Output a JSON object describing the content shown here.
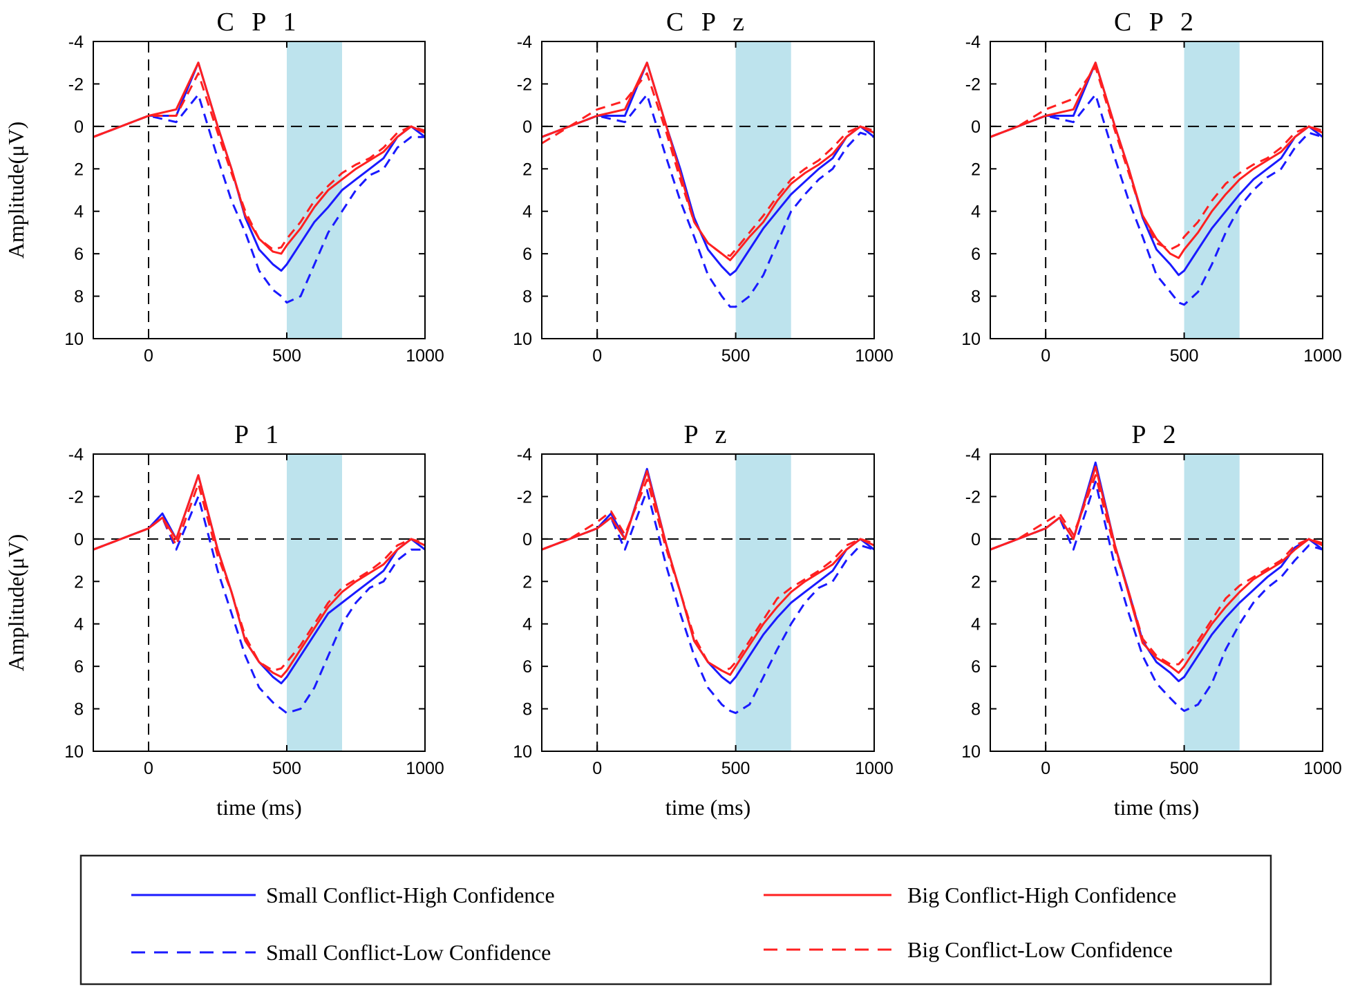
{
  "chart_data": {
    "type": "line",
    "xlabel": "time (ms)",
    "ylabel": "Amplitude(μV)",
    "xlim": [
      -200,
      1000
    ],
    "ylim": [
      -4,
      10
    ],
    "y_inverted": true,
    "xticks": [
      0,
      500,
      1000
    ],
    "yticks": [
      -4,
      -2,
      0,
      2,
      4,
      6,
      8,
      10
    ],
    "highlight_window": [
      500,
      700
    ],
    "highlight_color": "#bde3ed",
    "legend": [
      {
        "key": "sc_hc",
        "label": "Small Conflict-High Confidence",
        "color": "#1a1aff",
        "dash": "solid"
      },
      {
        "key": "sc_lc",
        "label": "Small Conflict-Low Confidence",
        "color": "#1a1aff",
        "dash": "dashed"
      },
      {
        "key": "bc_hc",
        "label": "Big Conflict-High Confidence",
        "color": "#ff2020",
        "dash": "solid"
      },
      {
        "key": "bc_lc",
        "label": "Big Conflict-Low Confidence",
        "color": "#ff2020",
        "dash": "dashed"
      }
    ],
    "panels": [
      {
        "title": "CP1",
        "x": [
          -200,
          -100,
          0,
          100,
          180,
          250,
          300,
          350,
          400,
          450,
          480,
          500,
          550,
          600,
          650,
          700,
          750,
          800,
          850,
          900,
          950,
          1000
        ],
        "series": {
          "sc_hc": [
            0.5,
            0,
            -0.5,
            -0.5,
            -3,
            0,
            2,
            4.3,
            5.8,
            6.5,
            6.8,
            6.5,
            5.5,
            4.5,
            3.8,
            3,
            2.5,
            2,
            1.5,
            0.5,
            0,
            0.5
          ],
          "sc_lc": [
            0.5,
            0,
            -0.5,
            -0.2,
            -1.5,
            1.5,
            3.5,
            5,
            6.8,
            7.7,
            8,
            8.3,
            8,
            6.5,
            5,
            4,
            3,
            2.3,
            2,
            1,
            0.5,
            0.5
          ],
          "bc_hc": [
            0.5,
            0,
            -0.5,
            -0.8,
            -3,
            0,
            2,
            4.2,
            5.3,
            5.9,
            6,
            5.6,
            4.8,
            3.8,
            3,
            2.5,
            2,
            1.6,
            1.2,
            0.5,
            0,
            0.3
          ],
          "bc_lc": [
            0.5,
            0,
            -0.5,
            -0.5,
            -2.5,
            0.3,
            2.2,
            4,
            5.3,
            5.8,
            5.7,
            5.3,
            4.5,
            3.5,
            2.8,
            2.2,
            1.8,
            1.5,
            1,
            0.3,
            0,
            0.2
          ]
        }
      },
      {
        "title": "CPz",
        "x": [
          -200,
          -100,
          0,
          100,
          180,
          250,
          300,
          350,
          400,
          450,
          480,
          500,
          550,
          600,
          650,
          700,
          750,
          800,
          850,
          900,
          950,
          1000
        ],
        "series": {
          "sc_hc": [
            0.5,
            0,
            -0.5,
            -0.5,
            -3,
            0,
            2,
            4.3,
            5.8,
            6.6,
            7,
            6.8,
            5.8,
            4.8,
            4,
            3.2,
            2.6,
            2,
            1.5,
            0.5,
            0,
            0.5
          ],
          "sc_lc": [
            0.5,
            0,
            -0.5,
            -0.2,
            -1.5,
            1.5,
            3.5,
            5.2,
            7,
            8,
            8.5,
            8.5,
            8,
            7,
            5.5,
            4,
            3.2,
            2.5,
            2,
            1,
            0.3,
            0.5
          ],
          "bc_hc": [
            0.5,
            0,
            -0.5,
            -0.8,
            -3,
            0,
            2.2,
            4.5,
            5.5,
            6,
            6.3,
            6,
            5.2,
            4.5,
            3.5,
            2.7,
            2.2,
            1.8,
            1.3,
            0.5,
            0,
            0.3
          ],
          "bc_lc": [
            0.8,
            0,
            -0.8,
            -1.2,
            -2.5,
            0.3,
            2.5,
            4.5,
            5.5,
            6,
            6.1,
            5.8,
            5,
            4.2,
            3.3,
            2.5,
            2,
            1.6,
            1,
            0.3,
            0,
            0.2
          ]
        }
      },
      {
        "title": "CP2",
        "x": [
          -200,
          -100,
          0,
          100,
          180,
          250,
          300,
          350,
          400,
          450,
          480,
          500,
          550,
          600,
          650,
          700,
          750,
          800,
          850,
          900,
          950,
          1000
        ],
        "series": {
          "sc_hc": [
            0.5,
            0,
            -0.5,
            -0.5,
            -3,
            0,
            2,
            4.3,
            5.8,
            6.5,
            7,
            6.8,
            5.8,
            4.8,
            4,
            3.2,
            2.5,
            2,
            1.5,
            0.5,
            0,
            0.5
          ],
          "sc_lc": [
            0.5,
            0,
            -0.5,
            -0.2,
            -1.5,
            1.5,
            3.5,
            5.2,
            7,
            7.8,
            8.3,
            8.4,
            7.8,
            6.5,
            5,
            3.8,
            3,
            2.4,
            2,
            1,
            0.3,
            0.5
          ],
          "bc_hc": [
            0.5,
            0,
            -0.5,
            -0.8,
            -3,
            0,
            2,
            4.2,
            5.3,
            6,
            6.2,
            5.8,
            5,
            4,
            3.2,
            2.5,
            2,
            1.6,
            1.2,
            0.5,
            0,
            0.3
          ],
          "bc_lc": [
            0.5,
            0,
            -0.8,
            -1.3,
            -2.8,
            0.2,
            2.2,
            4.2,
            5.5,
            5.8,
            5.6,
            5.2,
            4.5,
            3.5,
            2.7,
            2.2,
            1.8,
            1.5,
            1,
            0.3,
            0,
            0.2
          ]
        }
      },
      {
        "title": "P1",
        "x": [
          -200,
          -100,
          0,
          50,
          100,
          180,
          250,
          300,
          350,
          400,
          450,
          480,
          500,
          550,
          600,
          650,
          700,
          750,
          800,
          850,
          900,
          950,
          1000
        ],
        "series": {
          "sc_hc": [
            0.5,
            0,
            -0.5,
            -1.2,
            0,
            -3,
            0.5,
            2.5,
            4.8,
            5.8,
            6.5,
            6.8,
            6.5,
            5.5,
            4.5,
            3.5,
            3,
            2.5,
            2,
            1.5,
            0.5,
            0,
            0.5
          ],
          "sc_lc": [
            0.5,
            0,
            -0.5,
            -1,
            0.5,
            -2,
            1.5,
            3.5,
            5.5,
            7,
            7.7,
            8,
            8.2,
            8,
            7,
            5.5,
            4,
            3,
            2.3,
            2,
            1,
            0.5,
            0.5
          ],
          "bc_hc": [
            0.5,
            0,
            -0.5,
            -1,
            0,
            -3,
            0.5,
            2.5,
            4.8,
            5.8,
            6.3,
            6.5,
            6.2,
            5.2,
            4.2,
            3.2,
            2.5,
            2,
            1.6,
            1.2,
            0.5,
            0,
            0.3
          ],
          "bc_lc": [
            0.5,
            0,
            -0.5,
            -1,
            0.3,
            -2.6,
            0.8,
            2.5,
            4.6,
            5.8,
            6.2,
            6.1,
            5.8,
            5,
            4,
            3,
            2.3,
            1.9,
            1.5,
            1,
            0.3,
            0,
            0.2
          ]
        }
      },
      {
        "title": "Pz",
        "x": [
          -200,
          -100,
          0,
          50,
          100,
          180,
          250,
          300,
          350,
          400,
          450,
          480,
          500,
          550,
          600,
          650,
          700,
          750,
          800,
          850,
          900,
          950,
          1000
        ],
        "series": {
          "sc_hc": [
            0.5,
            0,
            -0.5,
            -1.2,
            0,
            -3.3,
            0.3,
            2.5,
            4.8,
            5.8,
            6.5,
            6.8,
            6.5,
            5.5,
            4.5,
            3.7,
            3,
            2.5,
            2,
            1.5,
            0.5,
            0,
            0.5
          ],
          "sc_lc": [
            0.5,
            0,
            -0.5,
            -1,
            0.5,
            -2.3,
            1.3,
            3.5,
            5.5,
            7,
            7.8,
            8.1,
            8.2,
            7.8,
            6.5,
            5.2,
            4,
            3,
            2.3,
            2,
            1,
            0.3,
            0.5
          ],
          "bc_hc": [
            0.5,
            0,
            -0.5,
            -1,
            0,
            -3.2,
            0.3,
            2.5,
            4.8,
            5.8,
            6.2,
            6.4,
            6,
            5,
            4,
            3.2,
            2.5,
            2,
            1.6,
            1.2,
            0.5,
            0,
            0.3
          ],
          "bc_lc": [
            0.5,
            0,
            -0.8,
            -1.3,
            -0.2,
            -2.8,
            0.5,
            2.5,
            4.6,
            5.8,
            6.2,
            6.1,
            5.8,
            4.8,
            3.8,
            2.8,
            2.3,
            1.9,
            1.5,
            1,
            0.3,
            0,
            0.2
          ]
        }
      },
      {
        "title": "P2",
        "x": [
          -200,
          -100,
          0,
          50,
          100,
          180,
          250,
          300,
          350,
          400,
          450,
          480,
          500,
          550,
          600,
          650,
          700,
          750,
          800,
          850,
          900,
          950,
          1000
        ],
        "series": {
          "sc_hc": [
            0.5,
            0,
            -0.5,
            -1,
            0,
            -3.6,
            0.3,
            2.5,
            4.8,
            5.8,
            6.3,
            6.7,
            6.5,
            5.5,
            4.5,
            3.7,
            3,
            2.4,
            1.8,
            1.3,
            0.4,
            0,
            0.5
          ],
          "sc_lc": [
            0.5,
            0,
            -0.5,
            -1,
            0.5,
            -2.7,
            1.3,
            3.5,
            5.5,
            6.8,
            7.5,
            7.9,
            8.1,
            7.8,
            6.8,
            5.2,
            4,
            3,
            2.3,
            1.8,
            1,
            0.3,
            0.5
          ],
          "bc_hc": [
            0.5,
            0,
            -0.5,
            -1,
            0,
            -3.4,
            0.3,
            2.6,
            4.9,
            5.6,
            6,
            6.3,
            6,
            5,
            4,
            3.2,
            2.5,
            1.9,
            1.5,
            1.1,
            0.5,
            0,
            0.3
          ],
          "bc_lc": [
            0.5,
            0,
            -0.8,
            -1.2,
            -0.2,
            -3,
            0.5,
            2.5,
            4.7,
            5.5,
            5.9,
            5.9,
            5.6,
            4.8,
            3.8,
            2.8,
            2.2,
            1.8,
            1.4,
            1,
            0.3,
            0,
            0.2
          ]
        }
      }
    ]
  }
}
